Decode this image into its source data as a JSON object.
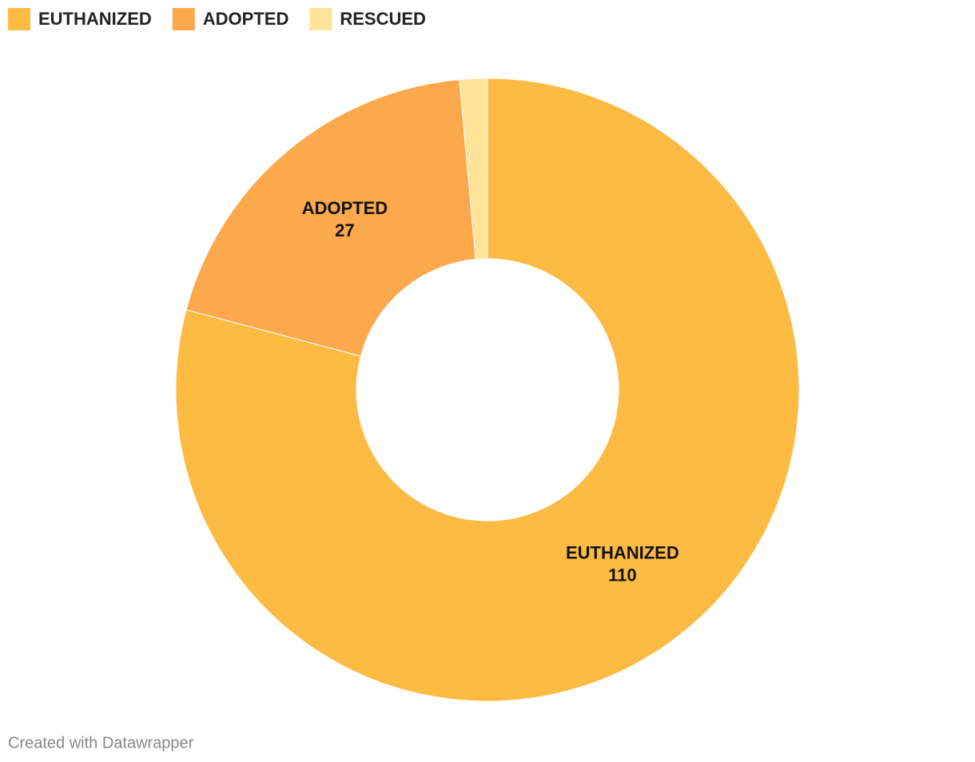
{
  "chart_data": {
    "type": "donut",
    "categories": [
      "EUTHANIZED",
      "ADOPTED",
      "RESCUED"
    ],
    "values": [
      110,
      27,
      2
    ],
    "colors": [
      "#fdbb44",
      "#fca84c",
      "#fee399"
    ],
    "credit": "Created with Datawrapper"
  }
}
